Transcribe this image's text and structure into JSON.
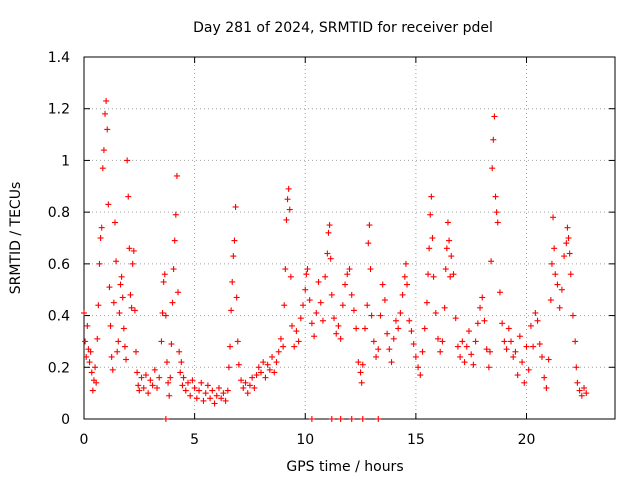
{
  "chart_data": {
    "type": "scatter",
    "title": "Day 281 of 2024, SRMTID for receiver pdel",
    "xlabel": "GPS time / hours",
    "ylabel": "SRMTID / TECUs",
    "xlim": [
      0,
      24
    ],
    "ylim": [
      0,
      1.4
    ],
    "x_ticks": [
      0,
      5,
      10,
      15,
      20
    ],
    "x_tick_labels": [
      "0",
      "5",
      "10",
      "15",
      "20"
    ],
    "y_ticks": [
      0,
      0.2,
      0.4,
      0.6,
      0.8,
      1,
      1.2,
      1.4
    ],
    "y_tick_labels": [
      "0",
      "0.2",
      "0.4",
      "0.6",
      "0.8",
      "1",
      "1.2",
      "1.4"
    ],
    "grid": true,
    "marker": "+",
    "series_color": "#ff0000",
    "series": [
      {
        "name": "SRMTID",
        "points": [
          [
            0.0,
            0.41
          ],
          [
            0.05,
            0.3
          ],
          [
            0.1,
            0.24
          ],
          [
            0.15,
            0.36
          ],
          [
            0.2,
            0.27
          ],
          [
            0.25,
            0.22
          ],
          [
            0.3,
            0.26
          ],
          [
            0.35,
            0.18
          ],
          [
            0.4,
            0.11
          ],
          [
            0.45,
            0.15
          ],
          [
            0.5,
            0.2
          ],
          [
            0.55,
            0.14
          ],
          [
            0.6,
            0.31
          ],
          [
            0.65,
            0.44
          ],
          [
            0.7,
            0.6
          ],
          [
            0.75,
            0.7
          ],
          [
            0.8,
            0.74
          ],
          [
            0.85,
            0.97
          ],
          [
            0.9,
            1.04
          ],
          [
            0.95,
            1.18
          ],
          [
            1.0,
            1.23
          ],
          [
            1.05,
            1.12
          ],
          [
            1.1,
            0.83
          ],
          [
            1.15,
            0.51
          ],
          [
            1.2,
            0.36
          ],
          [
            1.25,
            0.24
          ],
          [
            1.3,
            0.19
          ],
          [
            1.35,
            0.45
          ],
          [
            1.4,
            0.76
          ],
          [
            1.45,
            0.61
          ],
          [
            1.5,
            0.26
          ],
          [
            1.55,
            0.3
          ],
          [
            1.6,
            0.41
          ],
          [
            1.65,
            0.52
          ],
          [
            1.7,
            0.55
          ],
          [
            1.75,
            0.47
          ],
          [
            1.8,
            0.35
          ],
          [
            1.85,
            0.28
          ],
          [
            1.9,
            0.23
          ],
          [
            1.95,
            1.0
          ],
          [
            2.0,
            0.86
          ],
          [
            2.05,
            0.66
          ],
          [
            2.1,
            0.48
          ],
          [
            2.15,
            0.43
          ],
          [
            2.2,
            0.6
          ],
          [
            2.25,
            0.65
          ],
          [
            2.3,
            0.42
          ],
          [
            2.35,
            0.26
          ],
          [
            2.4,
            0.18
          ],
          [
            2.45,
            0.13
          ],
          [
            2.5,
            0.11
          ],
          [
            2.6,
            0.16
          ],
          [
            2.7,
            0.12
          ],
          [
            2.8,
            0.17
          ],
          [
            2.9,
            0.1
          ],
          [
            3.0,
            0.15
          ],
          [
            3.1,
            0.13
          ],
          [
            3.2,
            0.19
          ],
          [
            3.3,
            0.12
          ],
          [
            3.4,
            0.16
          ],
          [
            3.5,
            0.3
          ],
          [
            3.55,
            0.41
          ],
          [
            3.6,
            0.53
          ],
          [
            3.65,
            0.56
          ],
          [
            3.7,
            0.4
          ],
          [
            3.75,
            0.22
          ],
          [
            3.8,
            0.14
          ],
          [
            3.85,
            0.09
          ],
          [
            3.9,
            0.16
          ],
          [
            3.95,
            0.29
          ],
          [
            4.0,
            0.45
          ],
          [
            4.05,
            0.58
          ],
          [
            4.1,
            0.69
          ],
          [
            4.15,
            0.79
          ],
          [
            4.2,
            0.94
          ],
          [
            4.25,
            0.49
          ],
          [
            4.3,
            0.26
          ],
          [
            4.35,
            0.18
          ],
          [
            4.4,
            0.22
          ],
          [
            4.45,
            0.13
          ],
          [
            4.5,
            0.16
          ],
          [
            4.6,
            0.11
          ],
          [
            4.7,
            0.14
          ],
          [
            4.8,
            0.09
          ],
          [
            4.9,
            0.15
          ],
          [
            5.0,
            0.12
          ],
          [
            5.1,
            0.08
          ],
          [
            5.2,
            0.11
          ],
          [
            5.3,
            0.14
          ],
          [
            5.4,
            0.07
          ],
          [
            5.5,
            0.1
          ],
          [
            5.6,
            0.13
          ],
          [
            5.7,
            0.08
          ],
          [
            5.8,
            0.11
          ],
          [
            5.9,
            0.06
          ],
          [
            6.0,
            0.09
          ],
          [
            6.1,
            0.12
          ],
          [
            6.2,
            0.08
          ],
          [
            6.3,
            0.1
          ],
          [
            6.4,
            0.07
          ],
          [
            6.5,
            0.11
          ],
          [
            6.55,
            0.2
          ],
          [
            6.6,
            0.28
          ],
          [
            6.65,
            0.42
          ],
          [
            6.7,
            0.53
          ],
          [
            6.75,
            0.63
          ],
          [
            6.8,
            0.69
          ],
          [
            6.85,
            0.82
          ],
          [
            6.9,
            0.47
          ],
          [
            6.95,
            0.3
          ],
          [
            7.0,
            0.21
          ],
          [
            7.1,
            0.15
          ],
          [
            7.2,
            0.12
          ],
          [
            7.3,
            0.14
          ],
          [
            7.4,
            0.1
          ],
          [
            7.5,
            0.13
          ],
          [
            7.6,
            0.16
          ],
          [
            7.7,
            0.12
          ],
          [
            7.8,
            0.17
          ],
          [
            7.9,
            0.2
          ],
          [
            8.0,
            0.18
          ],
          [
            8.1,
            0.22
          ],
          [
            8.2,
            0.16
          ],
          [
            8.3,
            0.21
          ],
          [
            8.4,
            0.19
          ],
          [
            8.5,
            0.24
          ],
          [
            8.6,
            0.18
          ],
          [
            8.7,
            0.22
          ],
          [
            8.8,
            0.26
          ],
          [
            8.9,
            0.31
          ],
          [
            9.0,
            0.28
          ],
          [
            9.05,
            0.44
          ],
          [
            9.1,
            0.58
          ],
          [
            9.15,
            0.77
          ],
          [
            9.2,
            0.85
          ],
          [
            9.25,
            0.89
          ],
          [
            9.3,
            0.81
          ],
          [
            9.35,
            0.55
          ],
          [
            9.4,
            0.36
          ],
          [
            9.5,
            0.28
          ],
          [
            9.6,
            0.34
          ],
          [
            9.7,
            0.3
          ],
          [
            9.8,
            0.39
          ],
          [
            9.9,
            0.44
          ],
          [
            10.0,
            0.5
          ],
          [
            10.05,
            0.56
          ],
          [
            10.1,
            0.58
          ],
          [
            10.2,
            0.46
          ],
          [
            10.3,
            0.37
          ],
          [
            10.4,
            0.32
          ],
          [
            10.5,
            0.41
          ],
          [
            10.6,
            0.53
          ],
          [
            10.7,
            0.45
          ],
          [
            10.8,
            0.38
          ],
          [
            10.9,
            0.55
          ],
          [
            11.0,
            0.64
          ],
          [
            11.05,
            0.72
          ],
          [
            11.1,
            0.75
          ],
          [
            11.15,
            0.62
          ],
          [
            11.2,
            0.48
          ],
          [
            11.3,
            0.39
          ],
          [
            11.4,
            0.33
          ],
          [
            11.5,
            0.36
          ],
          [
            11.6,
            0.31
          ],
          [
            11.7,
            0.44
          ],
          [
            11.8,
            0.52
          ],
          [
            11.9,
            0.56
          ],
          [
            12.0,
            0.58
          ],
          [
            12.1,
            0.48
          ],
          [
            12.2,
            0.42
          ],
          [
            12.3,
            0.35
          ],
          [
            12.4,
            0.22
          ],
          [
            12.5,
            0.18
          ],
          [
            12.55,
            0.14
          ],
          [
            12.6,
            0.21
          ],
          [
            12.7,
            0.35
          ],
          [
            12.8,
            0.44
          ],
          [
            12.85,
            0.68
          ],
          [
            12.9,
            0.75
          ],
          [
            12.95,
            0.58
          ],
          [
            13.0,
            0.4
          ],
          [
            13.1,
            0.3
          ],
          [
            13.2,
            0.24
          ],
          [
            13.3,
            0.27
          ],
          [
            13.4,
            0.4
          ],
          [
            13.5,
            0.52
          ],
          [
            13.6,
            0.46
          ],
          [
            13.7,
            0.33
          ],
          [
            13.8,
            0.27
          ],
          [
            13.9,
            0.22
          ],
          [
            14.0,
            0.31
          ],
          [
            14.1,
            0.38
          ],
          [
            14.2,
            0.35
          ],
          [
            14.3,
            0.41
          ],
          [
            14.4,
            0.48
          ],
          [
            14.5,
            0.55
          ],
          [
            14.55,
            0.6
          ],
          [
            14.6,
            0.52
          ],
          [
            14.7,
            0.38
          ],
          [
            14.8,
            0.34
          ],
          [
            14.9,
            0.29
          ],
          [
            15.0,
            0.24
          ],
          [
            15.1,
            0.2
          ],
          [
            15.2,
            0.17
          ],
          [
            15.3,
            0.26
          ],
          [
            15.4,
            0.35
          ],
          [
            15.5,
            0.45
          ],
          [
            15.55,
            0.56
          ],
          [
            15.6,
            0.66
          ],
          [
            15.65,
            0.79
          ],
          [
            15.7,
            0.86
          ],
          [
            15.75,
            0.7
          ],
          [
            15.8,
            0.55
          ],
          [
            15.9,
            0.41
          ],
          [
            16.0,
            0.31
          ],
          [
            16.1,
            0.26
          ],
          [
            16.2,
            0.3
          ],
          [
            16.3,
            0.43
          ],
          [
            16.35,
            0.58
          ],
          [
            16.4,
            0.66
          ],
          [
            16.45,
            0.76
          ],
          [
            16.5,
            0.69
          ],
          [
            16.55,
            0.55
          ],
          [
            16.6,
            0.63
          ],
          [
            16.7,
            0.56
          ],
          [
            16.8,
            0.39
          ],
          [
            16.9,
            0.28
          ],
          [
            17.0,
            0.24
          ],
          [
            17.1,
            0.3
          ],
          [
            17.2,
            0.22
          ],
          [
            17.3,
            0.28
          ],
          [
            17.4,
            0.34
          ],
          [
            17.5,
            0.25
          ],
          [
            17.6,
            0.21
          ],
          [
            17.7,
            0.3
          ],
          [
            17.8,
            0.37
          ],
          [
            17.9,
            0.43
          ],
          [
            18.0,
            0.47
          ],
          [
            18.1,
            0.38
          ],
          [
            18.2,
            0.27
          ],
          [
            18.3,
            0.2
          ],
          [
            18.35,
            0.26
          ],
          [
            18.4,
            0.61
          ],
          [
            18.45,
            0.97
          ],
          [
            18.5,
            1.08
          ],
          [
            18.55,
            1.17
          ],
          [
            18.6,
            0.86
          ],
          [
            18.65,
            0.8
          ],
          [
            18.7,
            0.76
          ],
          [
            18.8,
            0.49
          ],
          [
            18.9,
            0.37
          ],
          [
            19.0,
            0.3
          ],
          [
            19.1,
            0.27
          ],
          [
            19.2,
            0.35
          ],
          [
            19.3,
            0.3
          ],
          [
            19.4,
            0.24
          ],
          [
            19.5,
            0.26
          ],
          [
            19.6,
            0.17
          ],
          [
            19.7,
            0.32
          ],
          [
            19.8,
            0.22
          ],
          [
            19.9,
            0.14
          ],
          [
            20.0,
            0.28
          ],
          [
            20.1,
            0.19
          ],
          [
            20.2,
            0.36
          ],
          [
            20.3,
            0.28
          ],
          [
            20.4,
            0.41
          ],
          [
            20.5,
            0.38
          ],
          [
            20.6,
            0.29
          ],
          [
            20.7,
            0.24
          ],
          [
            20.8,
            0.16
          ],
          [
            20.9,
            0.12
          ],
          [
            21.0,
            0.23
          ],
          [
            21.1,
            0.46
          ],
          [
            21.15,
            0.6
          ],
          [
            21.2,
            0.78
          ],
          [
            21.25,
            0.66
          ],
          [
            21.3,
            0.56
          ],
          [
            21.4,
            0.52
          ],
          [
            21.5,
            0.43
          ],
          [
            21.6,
            0.5
          ],
          [
            21.7,
            0.63
          ],
          [
            21.8,
            0.68
          ],
          [
            21.85,
            0.74
          ],
          [
            21.9,
            0.7
          ],
          [
            21.95,
            0.64
          ],
          [
            22.0,
            0.56
          ],
          [
            22.1,
            0.4
          ],
          [
            22.2,
            0.3
          ],
          [
            22.25,
            0.2
          ],
          [
            22.3,
            0.14
          ],
          [
            22.4,
            0.11
          ],
          [
            22.5,
            0.09
          ],
          [
            22.6,
            0.12
          ],
          [
            22.7,
            0.1
          ],
          [
            3.7,
            0.0
          ],
          [
            10.3,
            0.0
          ],
          [
            11.2,
            0.0
          ],
          [
            11.6,
            0.0
          ],
          [
            12.1,
            0.0
          ],
          [
            12.6,
            0.0
          ],
          [
            13.3,
            0.0
          ]
        ]
      }
    ]
  }
}
